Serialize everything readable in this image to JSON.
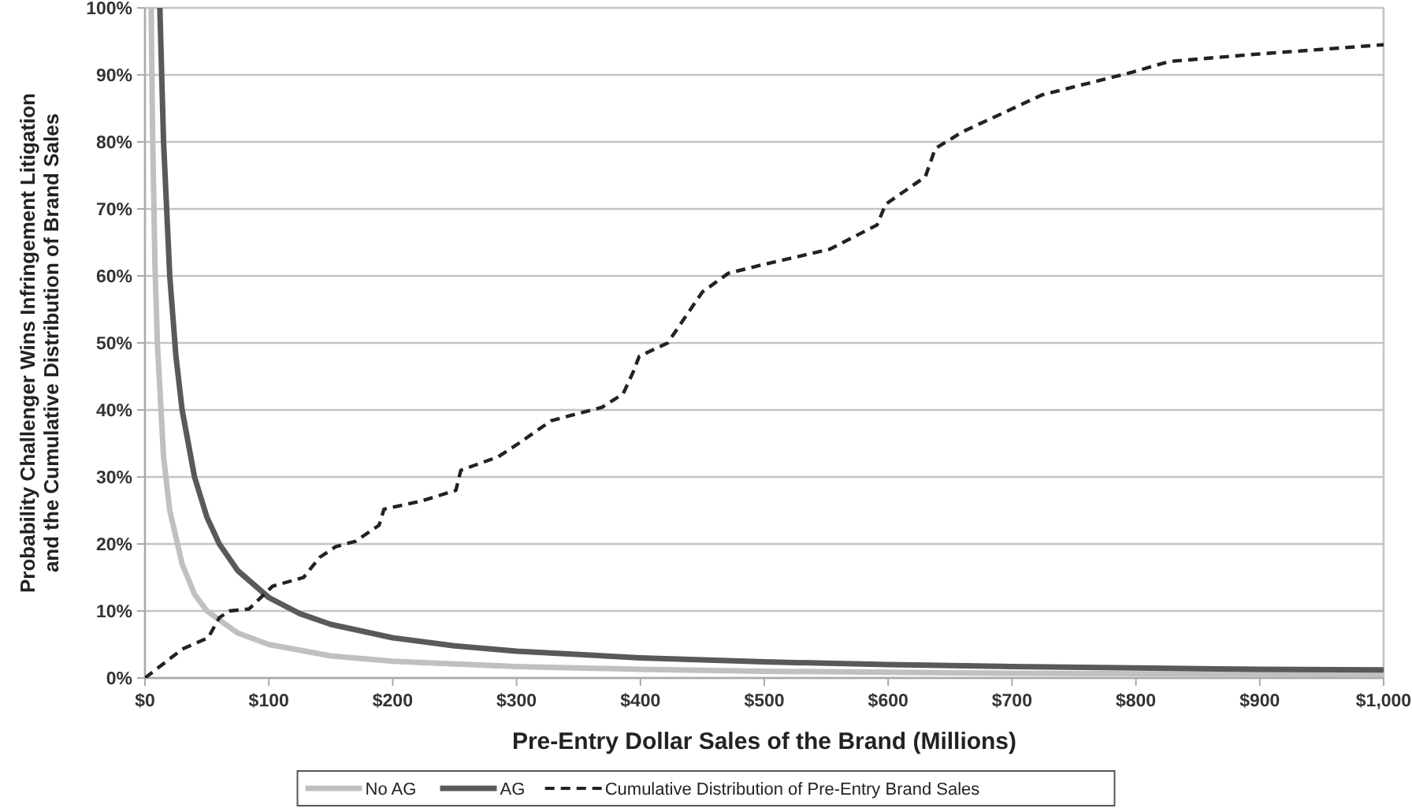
{
  "chart_data": {
    "type": "line",
    "xlabel": "Pre-Entry Dollar Sales of the Brand (Millions)",
    "ylabel": "Probability Challenger Wins Infringement Litigation\nand the Cumulative Distribution of Brand Sales",
    "xlim": [
      0,
      1000
    ],
    "ylim": [
      0,
      100
    ],
    "xticks": [
      {
        "value": 0,
        "label": "$0"
      },
      {
        "value": 100,
        "label": "$100"
      },
      {
        "value": 200,
        "label": "$200"
      },
      {
        "value": 300,
        "label": "$300"
      },
      {
        "value": 400,
        "label": "$400"
      },
      {
        "value": 500,
        "label": "$500"
      },
      {
        "value": 600,
        "label": "$600"
      },
      {
        "value": 700,
        "label": "$700"
      },
      {
        "value": 800,
        "label": "$800"
      },
      {
        "value": 900,
        "label": "$900"
      },
      {
        "value": 1000,
        "label": "$1,000"
      }
    ],
    "yticks": [
      {
        "value": 0,
        "label": "0%"
      },
      {
        "value": 10,
        "label": "10%"
      },
      {
        "value": 20,
        "label": "20%"
      },
      {
        "value": 30,
        "label": "30%"
      },
      {
        "value": 40,
        "label": "40%"
      },
      {
        "value": 50,
        "label": "50%"
      },
      {
        "value": 60,
        "label": "60%"
      },
      {
        "value": 70,
        "label": "70%"
      },
      {
        "value": 80,
        "label": "80%"
      },
      {
        "value": 90,
        "label": "90%"
      },
      {
        "value": 100,
        "label": "100%"
      }
    ],
    "grid": "y",
    "legend": "bottom",
    "marker": "none",
    "series": [
      {
        "name": "No AG",
        "color": "#c0c0c0",
        "line_style": "solid",
        "x": [
          5,
          6,
          8,
          10,
          15,
          20,
          30,
          40,
          50,
          75,
          100,
          150,
          200,
          300,
          400,
          500,
          700,
          1000
        ],
        "values": [
          100,
          83,
          62,
          50,
          33,
          25,
          17,
          12.5,
          10,
          6.7,
          5,
          3.3,
          2.5,
          1.7,
          1.3,
          1,
          0.7,
          0.5
        ]
      },
      {
        "name": "AG",
        "color": "#595959",
        "line_style": "solid",
        "x": [
          12,
          15,
          20,
          25,
          30,
          40,
          50,
          60,
          75,
          100,
          125,
          150,
          200,
          250,
          300,
          400,
          500,
          600,
          700,
          800,
          900,
          1000
        ],
        "values": [
          100,
          80,
          60,
          48,
          40,
          30,
          24,
          20,
          16,
          12,
          9.6,
          8,
          6,
          4.8,
          4,
          3,
          2.4,
          2,
          1.7,
          1.5,
          1.3,
          1.2
        ]
      },
      {
        "name": "Cumulative Distribution of Pre-Entry Brand Sales",
        "color": "#222222",
        "line_style": "dashed",
        "x": [
          0,
          30,
          51,
          60,
          68,
          84,
          103,
          128,
          141,
          154,
          170,
          189,
          193,
          223,
          251,
          255,
          285,
          300,
          328,
          369,
          386,
          394,
          399,
          422,
          433,
          450,
          471,
          497,
          553,
          591,
          598,
          630,
          638,
          660,
          724,
          797,
          827,
          891,
          1000
        ],
        "values": [
          0,
          4.3,
          6,
          9,
          10,
          10.3,
          13.7,
          15,
          18,
          19.6,
          20.4,
          22.8,
          25.2,
          26.4,
          28,
          31,
          33,
          34.8,
          38.4,
          40.4,
          42.4,
          45.6,
          48,
          50,
          53,
          57.6,
          60.4,
          61.6,
          64,
          67.6,
          70.7,
          74.8,
          79,
          81.5,
          87,
          90.4,
          92,
          93,
          94.5
        ]
      }
    ]
  }
}
